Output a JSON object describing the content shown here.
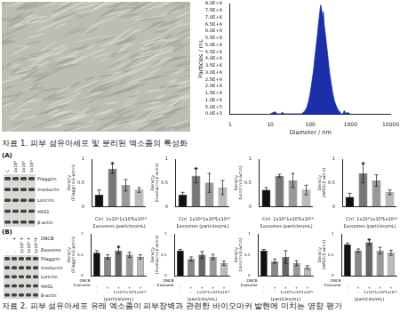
{
  "caption1": "자료 1. 피부 섬유아세포 및 분리된 엑소좀의 특성화",
  "caption2": "자료 2. 피부 섬유아세포 유래 엑소좀이 피부장벽과 관련한 바이오마커 발현에 미치는 영향 평가",
  "panel_labels": [
    "(A)",
    "(B)"
  ],
  "blots": [
    {
      "rows": [
        "Filaggrin",
        "Involucrin",
        "Loricrin",
        "HAS1",
        "β-actin"
      ],
      "lanes": [
        [
          "C",
          "1x10⁸",
          "1x10⁹",
          "1x10¹⁰"
        ]
      ]
    },
    {
      "rows": [
        "Filaggrin",
        "Involucrin",
        "Loricrin",
        "HAS1",
        "β-actin"
      ],
      "lane_rows": [
        "DNCB",
        "Exosome"
      ],
      "lanes": [
        [
          "-",
          "+",
          "+",
          "+",
          "+"
        ],
        [
          "-",
          "-",
          "1x10⁸",
          "1x10⁹",
          "1x10¹⁰"
        ]
      ]
    }
  ],
  "chart_data": [
    {
      "type": "area",
      "xlabel": "Diameter / nm",
      "ylabel": "Particles / mL",
      "log": "x",
      "grid": false,
      "color": "#1a2fa8",
      "x": [
        10,
        13,
        15,
        18,
        20,
        22,
        40,
        60,
        70,
        80,
        90,
        100,
        110,
        120,
        130,
        140,
        150,
        160,
        170,
        180,
        190,
        200,
        210,
        220,
        240,
        260,
        280,
        300,
        330,
        360,
        400,
        450,
        500,
        550,
        600,
        650,
        700,
        750,
        800,
        1000
      ],
      "values": [
        0,
        150000,
        0,
        0,
        120000,
        0,
        0,
        0,
        150000,
        400000,
        900000,
        1600000,
        2400000,
        3200000,
        4200000,
        5000000,
        5800000,
        6600000,
        7300000,
        7900000,
        7600000,
        7000000,
        7400000,
        6500000,
        5600000,
        4700000,
        3800000,
        3000000,
        2200000,
        1500000,
        900000,
        500000,
        250000,
        120000,
        0,
        0,
        250000,
        0,
        100000,
        0
      ],
      "xlim": [
        1,
        10000
      ],
      "xticks": [
        1,
        10,
        100,
        1000,
        10000
      ],
      "ylim": [
        0,
        8000000
      ],
      "yticks": [
        {
          "value": 0,
          "label": "0.0E+0"
        },
        {
          "value": 500000,
          "label": "5.0E+5"
        },
        {
          "value": 1000000,
          "label": "1.0E+6"
        },
        {
          "value": 1500000,
          "label": "1.5E+6"
        },
        {
          "value": 2000000,
          "label": "2.0E+6"
        },
        {
          "value": 2500000,
          "label": "2.5E+6"
        },
        {
          "value": 3000000,
          "label": "3.0E+6"
        },
        {
          "value": 3500000,
          "label": "3.5E+6"
        },
        {
          "value": 4000000,
          "label": "4.0E+6"
        },
        {
          "value": 4500000,
          "label": "4.5E+6"
        },
        {
          "value": 5000000,
          "label": "5.0E+6"
        },
        {
          "value": 5500000,
          "label": "5.5E+6"
        },
        {
          "value": 6000000,
          "label": "6.0E+6"
        },
        {
          "value": 6500000,
          "label": "6.5E+6"
        },
        {
          "value": 7000000,
          "label": "7.0E+6"
        },
        {
          "value": 7500000,
          "label": "7.5E+6"
        },
        {
          "value": 8000000,
          "label": "8.0E+6"
        }
      ]
    },
    {
      "type": "bar",
      "ylabel": "Density (Filaggrin/β-actin)",
      "xlabel": "Exosomes (particles/mL)",
      "categories": [
        "Ctrl",
        "1x10⁸",
        "1x10⁹",
        "1x10¹⁰"
      ],
      "values": [
        0.25,
        0.8,
        0.45,
        0.35
      ],
      "errors": [
        0.1,
        0.1,
        0.12,
        0.05
      ],
      "colors": [
        "#111111",
        "#777777",
        "#999999",
        "#bbbbbb"
      ],
      "ylim": [
        0,
        1
      ],
      "yticks": [
        0,
        0.5,
        1
      ],
      "annotations": [
        {
          "text": "*",
          "index": 1
        }
      ]
    },
    {
      "type": "bar",
      "ylabel": "Density (Involucrin/β-actin)",
      "xlabel": "Exosomes (particles/mL)",
      "categories": [
        "Ctrl",
        "1x10⁸",
        "1x10⁹",
        "1x10¹⁰"
      ],
      "values": [
        0.25,
        0.65,
        0.5,
        0.4
      ],
      "errors": [
        0.05,
        0.15,
        0.2,
        0.15
      ],
      "colors": [
        "#111111",
        "#777777",
        "#999999",
        "#bbbbbb"
      ],
      "ylim": [
        0,
        1
      ],
      "yticks": [
        0,
        0.5,
        1
      ],
      "annotations": [
        {
          "text": "*",
          "index": 1
        }
      ]
    },
    {
      "type": "bar",
      "ylabel": "Density (Loricrin/β-actin)",
      "xlabel": "Exosomes (particles/mL)",
      "categories": [
        "Ctrl",
        "1x10⁸",
        "1x10⁹",
        "1x10¹⁰"
      ],
      "values": [
        0.35,
        0.65,
        0.55,
        0.35
      ],
      "errors": [
        0.05,
        0.03,
        0.15,
        0.1
      ],
      "colors": [
        "#111111",
        "#777777",
        "#999999",
        "#bbbbbb"
      ],
      "ylim": [
        0,
        1
      ],
      "yticks": [
        0,
        0.5,
        1
      ]
    },
    {
      "type": "bar",
      "ylabel": "Density (HAS1/β-actin)",
      "xlabel": "Exosomes (particles/mL)",
      "categories": [
        "Ctrl",
        "1x10⁸",
        "1x10⁹",
        "1x10¹⁰"
      ],
      "values": [
        0.2,
        0.7,
        0.55,
        0.3
      ],
      "errors": [
        0.08,
        0.2,
        0.12,
        0.05
      ],
      "colors": [
        "#111111",
        "#777777",
        "#999999",
        "#bbbbbb"
      ],
      "ylim": [
        0,
        1
      ],
      "yticks": [
        0,
        0.5,
        1
      ],
      "annotations": [
        {
          "text": "*",
          "index": 1
        }
      ]
    },
    {
      "type": "bar",
      "ylabel": "Density (Filaggrin/β-actin)",
      "xlabel": "(particles/mL)",
      "category_rows": [
        "DNCB",
        "Exosome"
      ],
      "categories": [
        [
          "-",
          "-"
        ],
        [
          "+",
          "-"
        ],
        [
          "+",
          "1x10⁸"
        ],
        [
          "+",
          "1x10⁹"
        ],
        [
          "+",
          "1x10¹⁰"
        ]
      ],
      "values": [
        0.55,
        0.45,
        0.6,
        0.5,
        0.45
      ],
      "errors": [
        0.05,
        0.05,
        0.08,
        0.06,
        0.05
      ],
      "colors": [
        "#111111",
        "#888888",
        "#666666",
        "#999999",
        "#bbbbbb"
      ],
      "ylim": [
        0,
        1
      ],
      "yticks": [
        0,
        0.5,
        1
      ],
      "annotations": [
        {
          "text": "*",
          "index": 2
        }
      ]
    },
    {
      "type": "bar",
      "ylabel": "Density (Involucrin/β-actin)",
      "xlabel": "(particles/mL)",
      "category_rows": [
        "DNCB",
        "Exosome"
      ],
      "categories": [
        [
          "-",
          "-"
        ],
        [
          "+",
          "-"
        ],
        [
          "+",
          "1x10⁸"
        ],
        [
          "+",
          "1x10⁹"
        ],
        [
          "+",
          "1x10¹⁰"
        ]
      ],
      "values": [
        0.6,
        0.4,
        0.5,
        0.45,
        0.3
      ],
      "errors": [
        0.03,
        0.05,
        0.08,
        0.06,
        0.05
      ],
      "colors": [
        "#111111",
        "#888888",
        "#666666",
        "#999999",
        "#bbbbbb"
      ],
      "ylim": [
        0,
        1
      ],
      "yticks": [
        0,
        0.5,
        1
      ]
    },
    {
      "type": "bar",
      "ylabel": "Density (Loricrin/β-actin)",
      "xlabel": "(particles/mL)",
      "category_rows": [
        "DNCB",
        "Exosome"
      ],
      "categories": [
        [
          "-",
          "-"
        ],
        [
          "+",
          "-"
        ],
        [
          "+",
          "1x10⁸"
        ],
        [
          "+",
          "1x10⁹"
        ],
        [
          "+",
          "1x10¹⁰"
        ]
      ],
      "values": [
        0.6,
        0.35,
        0.45,
        0.3,
        0.2
      ],
      "errors": [
        0.03,
        0.05,
        0.15,
        0.06,
        0.04
      ],
      "colors": [
        "#111111",
        "#888888",
        "#666666",
        "#999999",
        "#bbbbbb"
      ],
      "ylim": [
        0,
        1
      ],
      "yticks": [
        0,
        0.5,
        1
      ]
    },
    {
      "type": "bar",
      "ylabel": "Density (HAS1/β-actin)",
      "xlabel": "(particles/mL)",
      "category_rows": [
        "DNCB",
        "Exosome"
      ],
      "categories": [
        [
          "-",
          "-"
        ],
        [
          "+",
          "-"
        ],
        [
          "+",
          "1x10⁸"
        ],
        [
          "+",
          "1x10⁹"
        ],
        [
          "+",
          "1x10¹⁰"
        ]
      ],
      "values": [
        0.75,
        0.6,
        0.8,
        0.6,
        0.55
      ],
      "errors": [
        0.03,
        0.04,
        0.06,
        0.08,
        0.06
      ],
      "colors": [
        "#111111",
        "#888888",
        "#666666",
        "#999999",
        "#bbbbbb"
      ],
      "ylim": [
        0,
        1
      ],
      "yticks": [
        0,
        0.5,
        1
      ],
      "annotations": [
        {
          "text": "*",
          "index": 2
        }
      ]
    }
  ]
}
